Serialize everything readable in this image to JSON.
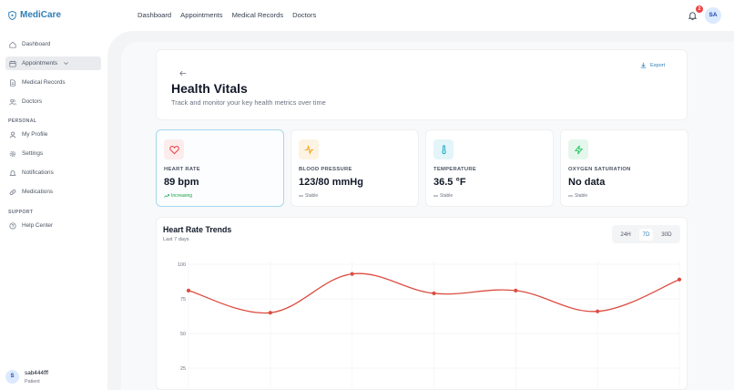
{
  "app": {
    "brand": "MediCare",
    "brand_color": "#2f7fb8"
  },
  "topnav": [
    {
      "label": "Dashboard"
    },
    {
      "label": "Appointments"
    },
    {
      "label": "Medical Records"
    },
    {
      "label": "Doctors"
    }
  ],
  "notifications": {
    "count": "2"
  },
  "user_avatar": "SA",
  "sidebar": {
    "main": [
      {
        "label": "Dashboard",
        "icon": "home-icon"
      },
      {
        "label": "Appointments",
        "icon": "calendar-icon",
        "active": true
      },
      {
        "label": "Medical Records",
        "icon": "file-icon"
      },
      {
        "label": "Doctors",
        "icon": "users-icon"
      }
    ],
    "personal_heading": "PERSONAL",
    "personal": [
      {
        "label": "My Profile",
        "icon": "user-icon"
      },
      {
        "label": "Settings",
        "icon": "gear-icon"
      },
      {
        "label": "Notifications",
        "icon": "bell-icon"
      },
      {
        "label": "Medications",
        "icon": "pill-icon"
      }
    ],
    "support_heading": "SUPPORT",
    "support": [
      {
        "label": "Help Center",
        "icon": "help-icon"
      }
    ],
    "user": {
      "initial": "S",
      "name": "sab444fff",
      "role": "Patient"
    }
  },
  "page": {
    "title": "Health Vitals",
    "subtitle": "Track and monitor your key health metrics over time",
    "export_label": "Export"
  },
  "stats": [
    {
      "label": "HEART RATE",
      "value": "89 bpm",
      "trend": "Increasing",
      "icon": "heart-icon",
      "color": "#ef4444",
      "bg": "#fdecec"
    },
    {
      "label": "BLOOD PRESSURE",
      "value": "123/80 mmHg",
      "trend": "Stable",
      "icon": "activity-icon",
      "color": "#f59e0b",
      "bg": "#fdf3e3"
    },
    {
      "label": "TEMPERATURE",
      "value": "36.5 °F",
      "trend": "Stable",
      "icon": "thermometer-icon",
      "color": "#0ea5c6",
      "bg": "#e3f5f9"
    },
    {
      "label": "OXYGEN SATURATION",
      "value": "No data",
      "trend": "Stable",
      "icon": "zap-icon",
      "color": "#22c55e",
      "bg": "#e5f7ec"
    }
  ],
  "trends": {
    "title": "Heart Rate Trends",
    "subtitle": "Last 7 days",
    "ranges": [
      "24H",
      "7D",
      "30D"
    ],
    "selected_range": "7D"
  },
  "chart_data": {
    "type": "line",
    "x": [
      1,
      2,
      3,
      4,
      5,
      6,
      7
    ],
    "values": [
      81,
      65,
      93,
      79,
      81,
      66,
      89
    ],
    "ylim": [
      25,
      100
    ],
    "yticks": [
      "100",
      "75",
      "50",
      "25"
    ],
    "color": "#dc4d41",
    "grid": true
  }
}
